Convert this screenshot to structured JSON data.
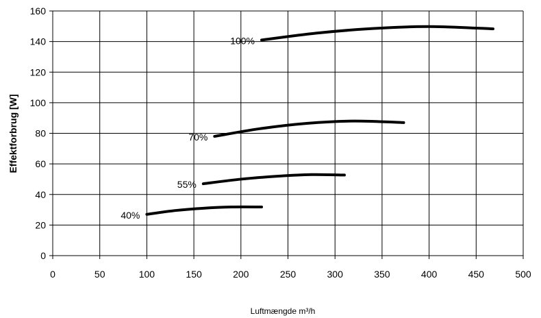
{
  "chart_data": {
    "type": "line",
    "xlabel": "Luftmængde m³/h",
    "ylabel": "Effektforbrug [W]",
    "xlim": [
      0,
      500
    ],
    "ylim": [
      0,
      160
    ],
    "xticks": [
      0,
      50,
      100,
      150,
      200,
      250,
      300,
      350,
      400,
      450,
      500
    ],
    "yticks": [
      0,
      20,
      40,
      60,
      80,
      100,
      120,
      140,
      160
    ],
    "grid": true,
    "legend": "none",
    "line_color": "#000000",
    "series": [
      {
        "name": "40%",
        "points": [
          [
            100,
            27
          ],
          [
            130,
            29.5
          ],
          [
            160,
            31
          ],
          [
            190,
            31.8
          ],
          [
            222,
            31.8
          ]
        ]
      },
      {
        "name": "55%",
        "points": [
          [
            160,
            47
          ],
          [
            200,
            50
          ],
          [
            240,
            52
          ],
          [
            275,
            53
          ],
          [
            310,
            52.7
          ]
        ]
      },
      {
        "name": "70%",
        "points": [
          [
            172,
            78
          ],
          [
            220,
            83
          ],
          [
            270,
            86.5
          ],
          [
            320,
            88
          ],
          [
            373,
            87
          ]
        ]
      },
      {
        "name": "100%",
        "points": [
          [
            222,
            141
          ],
          [
            280,
            145.5
          ],
          [
            340,
            148.5
          ],
          [
            400,
            149.8
          ],
          [
            468,
            148.3
          ]
        ]
      }
    ]
  }
}
